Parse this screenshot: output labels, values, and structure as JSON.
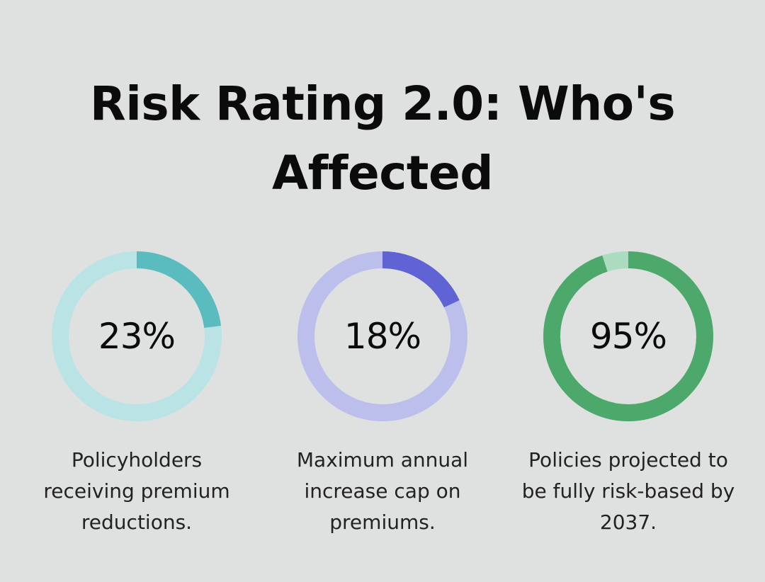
{
  "title": "Risk Rating 2.0: Who's Affected",
  "chart_data": {
    "type": "pie",
    "title": "Risk Rating 2.0: Who's Affected",
    "items": [
      {
        "percent": 23,
        "label": "23%",
        "caption": "Policyholders receiving premium reductions.",
        "fill_color": "#5bbcc0",
        "track_color": "#b9e3e4"
      },
      {
        "percent": 18,
        "label": "18%",
        "caption": "Maximum annual increase cap on premiums.",
        "fill_color": "#5f63d3",
        "track_color": "#bcbfeb"
      },
      {
        "percent": 95,
        "label": "95%",
        "caption": "Policies projected to be fully risk-based by 2037.",
        "fill_color": "#4ca96b",
        "track_color": "#acdcbf"
      }
    ]
  }
}
